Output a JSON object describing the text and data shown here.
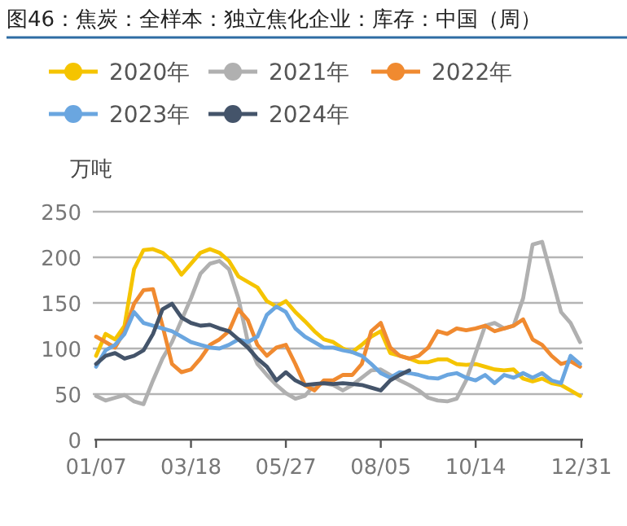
{
  "chart_data": {
    "type": "line",
    "title": "图46：焦炭：全样本：独立焦化企业：库存：中国（周）",
    "ylabel": "万吨",
    "x": [
      "--01-07",
      "--01-14",
      "--01-21",
      "--01-28",
      "--02-04",
      "--02-11",
      "--02-18",
      "--02-25",
      "--03-04",
      "--03-11",
      "--03-18",
      "--03-25",
      "--04-01",
      "--04-08",
      "--04-15",
      "--04-22",
      "--04-29",
      "--05-06",
      "--05-13",
      "--05-20",
      "--05-27",
      "--06-03",
      "--06-10",
      "--06-17",
      "--06-24",
      "--07-01",
      "--07-08",
      "--07-15",
      "--07-22",
      "--07-29",
      "--08-05",
      "--08-12",
      "--08-19",
      "--08-26",
      "--09-02",
      "--09-09",
      "--09-16",
      "--09-23",
      "--09-30",
      "--10-07",
      "--10-14",
      "--10-21",
      "--10-28",
      "--11-04",
      "--11-11",
      "--11-18",
      "--11-25",
      "--12-02",
      "--12-09",
      "--12-16",
      "--12-23",
      "--12-30"
    ],
    "series": [
      {
        "name": "2020年",
        "color": "#f5c400",
        "values": [
          92,
          116,
          110,
          125,
          187,
          208,
          209,
          205,
          196,
          181,
          193,
          205,
          209,
          205,
          196,
          179,
          173,
          167,
          152,
          146,
          152,
          140,
          130,
          119,
          110,
          107,
          100,
          96,
          104,
          113,
          119,
          95,
          92,
          89,
          85,
          85,
          88,
          88,
          83,
          82,
          83,
          80,
          77,
          76,
          77,
          67,
          64,
          67,
          62,
          60,
          54,
          48
        ]
      },
      {
        "name": "2021年",
        "color": "#b0b0b0",
        "values": [
          48,
          43,
          46,
          49,
          42,
          39,
          65,
          89,
          107,
          131,
          155,
          182,
          193,
          196,
          187,
          155,
          107,
          83,
          71,
          60,
          51,
          45,
          48,
          60,
          62,
          60,
          54,
          60,
          68,
          76,
          77,
          71,
          65,
          60,
          54,
          46,
          43,
          42,
          45,
          65,
          95,
          125,
          128,
          122,
          125,
          155,
          214,
          217,
          179,
          140,
          128,
          107
        ]
      },
      {
        "name": "2022年",
        "color": "#f08a30",
        "values": [
          113,
          107,
          101,
          119,
          149,
          164,
          165,
          125,
          83,
          74,
          77,
          89,
          104,
          110,
          119,
          143,
          131,
          104,
          92,
          101,
          104,
          83,
          60,
          54,
          65,
          65,
          71,
          71,
          83,
          119,
          128,
          101,
          92,
          89,
          92,
          101,
          119,
          116,
          122,
          120,
          122,
          125,
          119,
          122,
          125,
          132,
          110,
          104,
          92,
          83,
          86,
          80
        ]
      },
      {
        "name": "2023年",
        "color": "#6aa6e0",
        "values": [
          80,
          98,
          104,
          116,
          140,
          128,
          125,
          122,
          119,
          113,
          107,
          104,
          101,
          100,
          104,
          110,
          107,
          113,
          137,
          146,
          140,
          122,
          113,
          107,
          101,
          101,
          98,
          96,
          92,
          83,
          73,
          68,
          74,
          73,
          71,
          68,
          67,
          71,
          73,
          68,
          65,
          71,
          62,
          71,
          68,
          73,
          68,
          73,
          65,
          62,
          92,
          83
        ]
      },
      {
        "name": "2024年",
        "color": "#44546a",
        "values": [
          83,
          92,
          95,
          89,
          92,
          98,
          116,
          143,
          149,
          134,
          128,
          125,
          126,
          122,
          119,
          110,
          101,
          89,
          80,
          65,
          74,
          65,
          60,
          61,
          62,
          61,
          62,
          61,
          60,
          57,
          54,
          65,
          71,
          76,
          null,
          null,
          null,
          null,
          null,
          null,
          null,
          null,
          null,
          null,
          null,
          null,
          null,
          null,
          null,
          null,
          null,
          null
        ]
      }
    ],
    "xlim": [
      "--01-07",
      "--12-31"
    ],
    "xticks": [
      {
        "value": "--01-07",
        "label": "01/07"
      },
      {
        "value": "--03-18",
        "label": "03/18"
      },
      {
        "value": "--05-27",
        "label": "05/27"
      },
      {
        "value": "--08-05",
        "label": "08/05"
      },
      {
        "value": "--10-14",
        "label": "10/14"
      },
      {
        "value": "--12-31",
        "label": "12/31"
      }
    ],
    "ylim": [
      0,
      250
    ],
    "yticks": [
      0,
      50,
      100,
      150,
      200,
      250
    ],
    "grid": "y",
    "legend": "top"
  }
}
